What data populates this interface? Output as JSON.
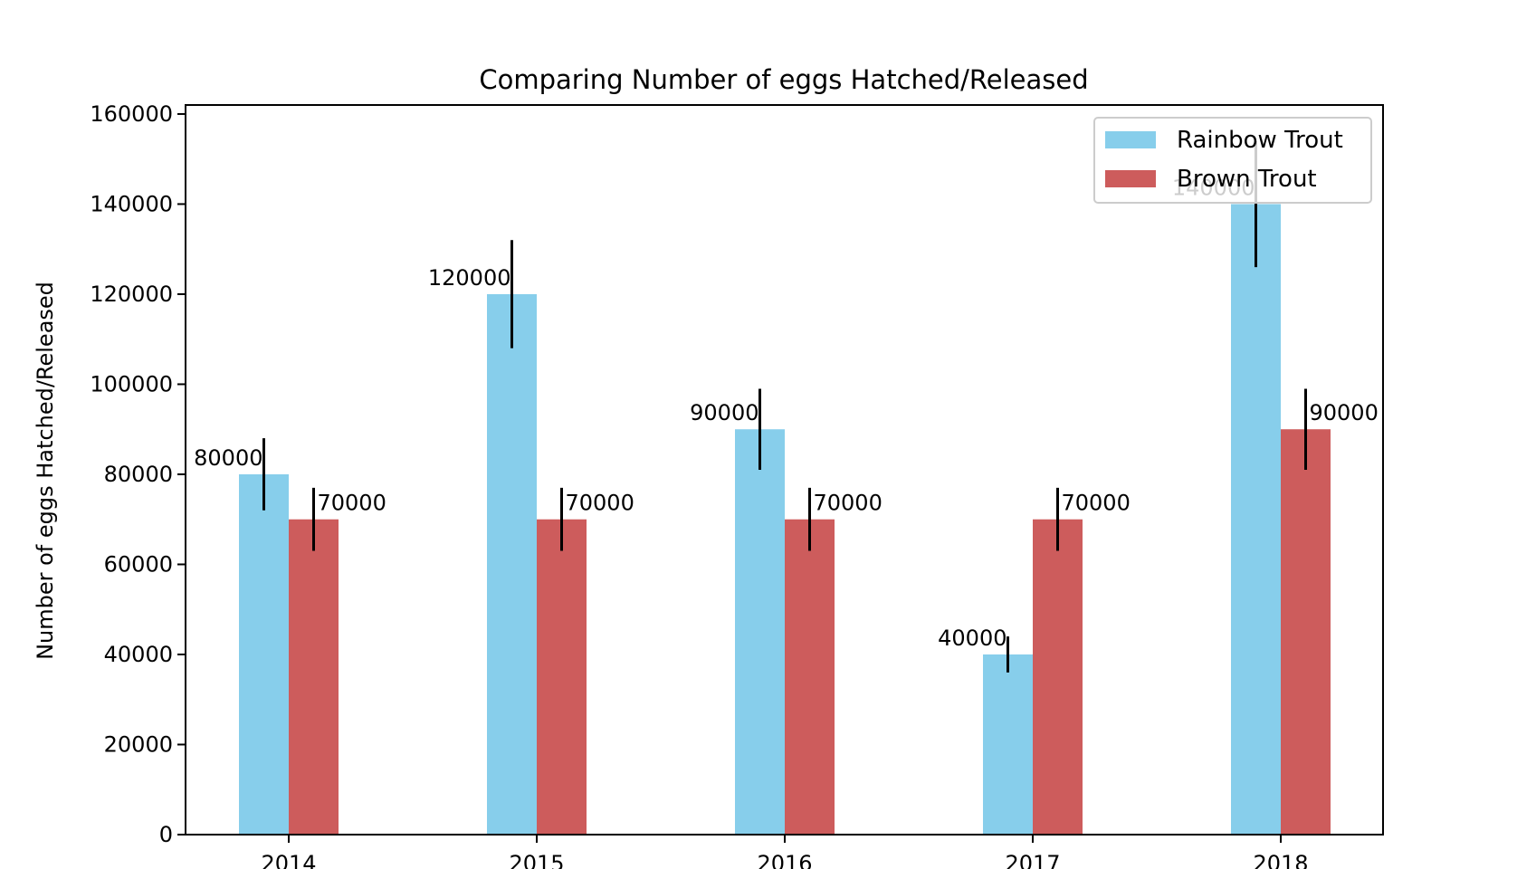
{
  "chart_data": {
    "type": "bar",
    "title": "Comparing Number of eggs Hatched/Released",
    "xlabel": "",
    "ylabel": "Number of eggs Hatched/Released",
    "categories": [
      "2014",
      "2015",
      "2016",
      "2017",
      "2018"
    ],
    "ylim": [
      0,
      162000
    ],
    "yticks": [
      0,
      20000,
      40000,
      60000,
      80000,
      100000,
      120000,
      140000,
      160000
    ],
    "grid": false,
    "legend_position": "top-right",
    "series": [
      {
        "name": "Rainbow Trout",
        "color": "#87CEEB",
        "values": [
          80000,
          120000,
          90000,
          40000,
          140000
        ],
        "errors": [
          8000,
          12000,
          9000,
          4000,
          14000
        ],
        "labels": [
          "80000",
          "120000",
          "90000",
          "40000",
          "140000"
        ]
      },
      {
        "name": "Brown Trout",
        "color": "#CD5C5C",
        "values": [
          70000,
          70000,
          70000,
          70000,
          90000
        ],
        "errors": [
          7000,
          7000,
          7000,
          7000,
          9000
        ],
        "labels": [
          "70000",
          "70000",
          "70000",
          "70000",
          "90000"
        ]
      }
    ]
  }
}
